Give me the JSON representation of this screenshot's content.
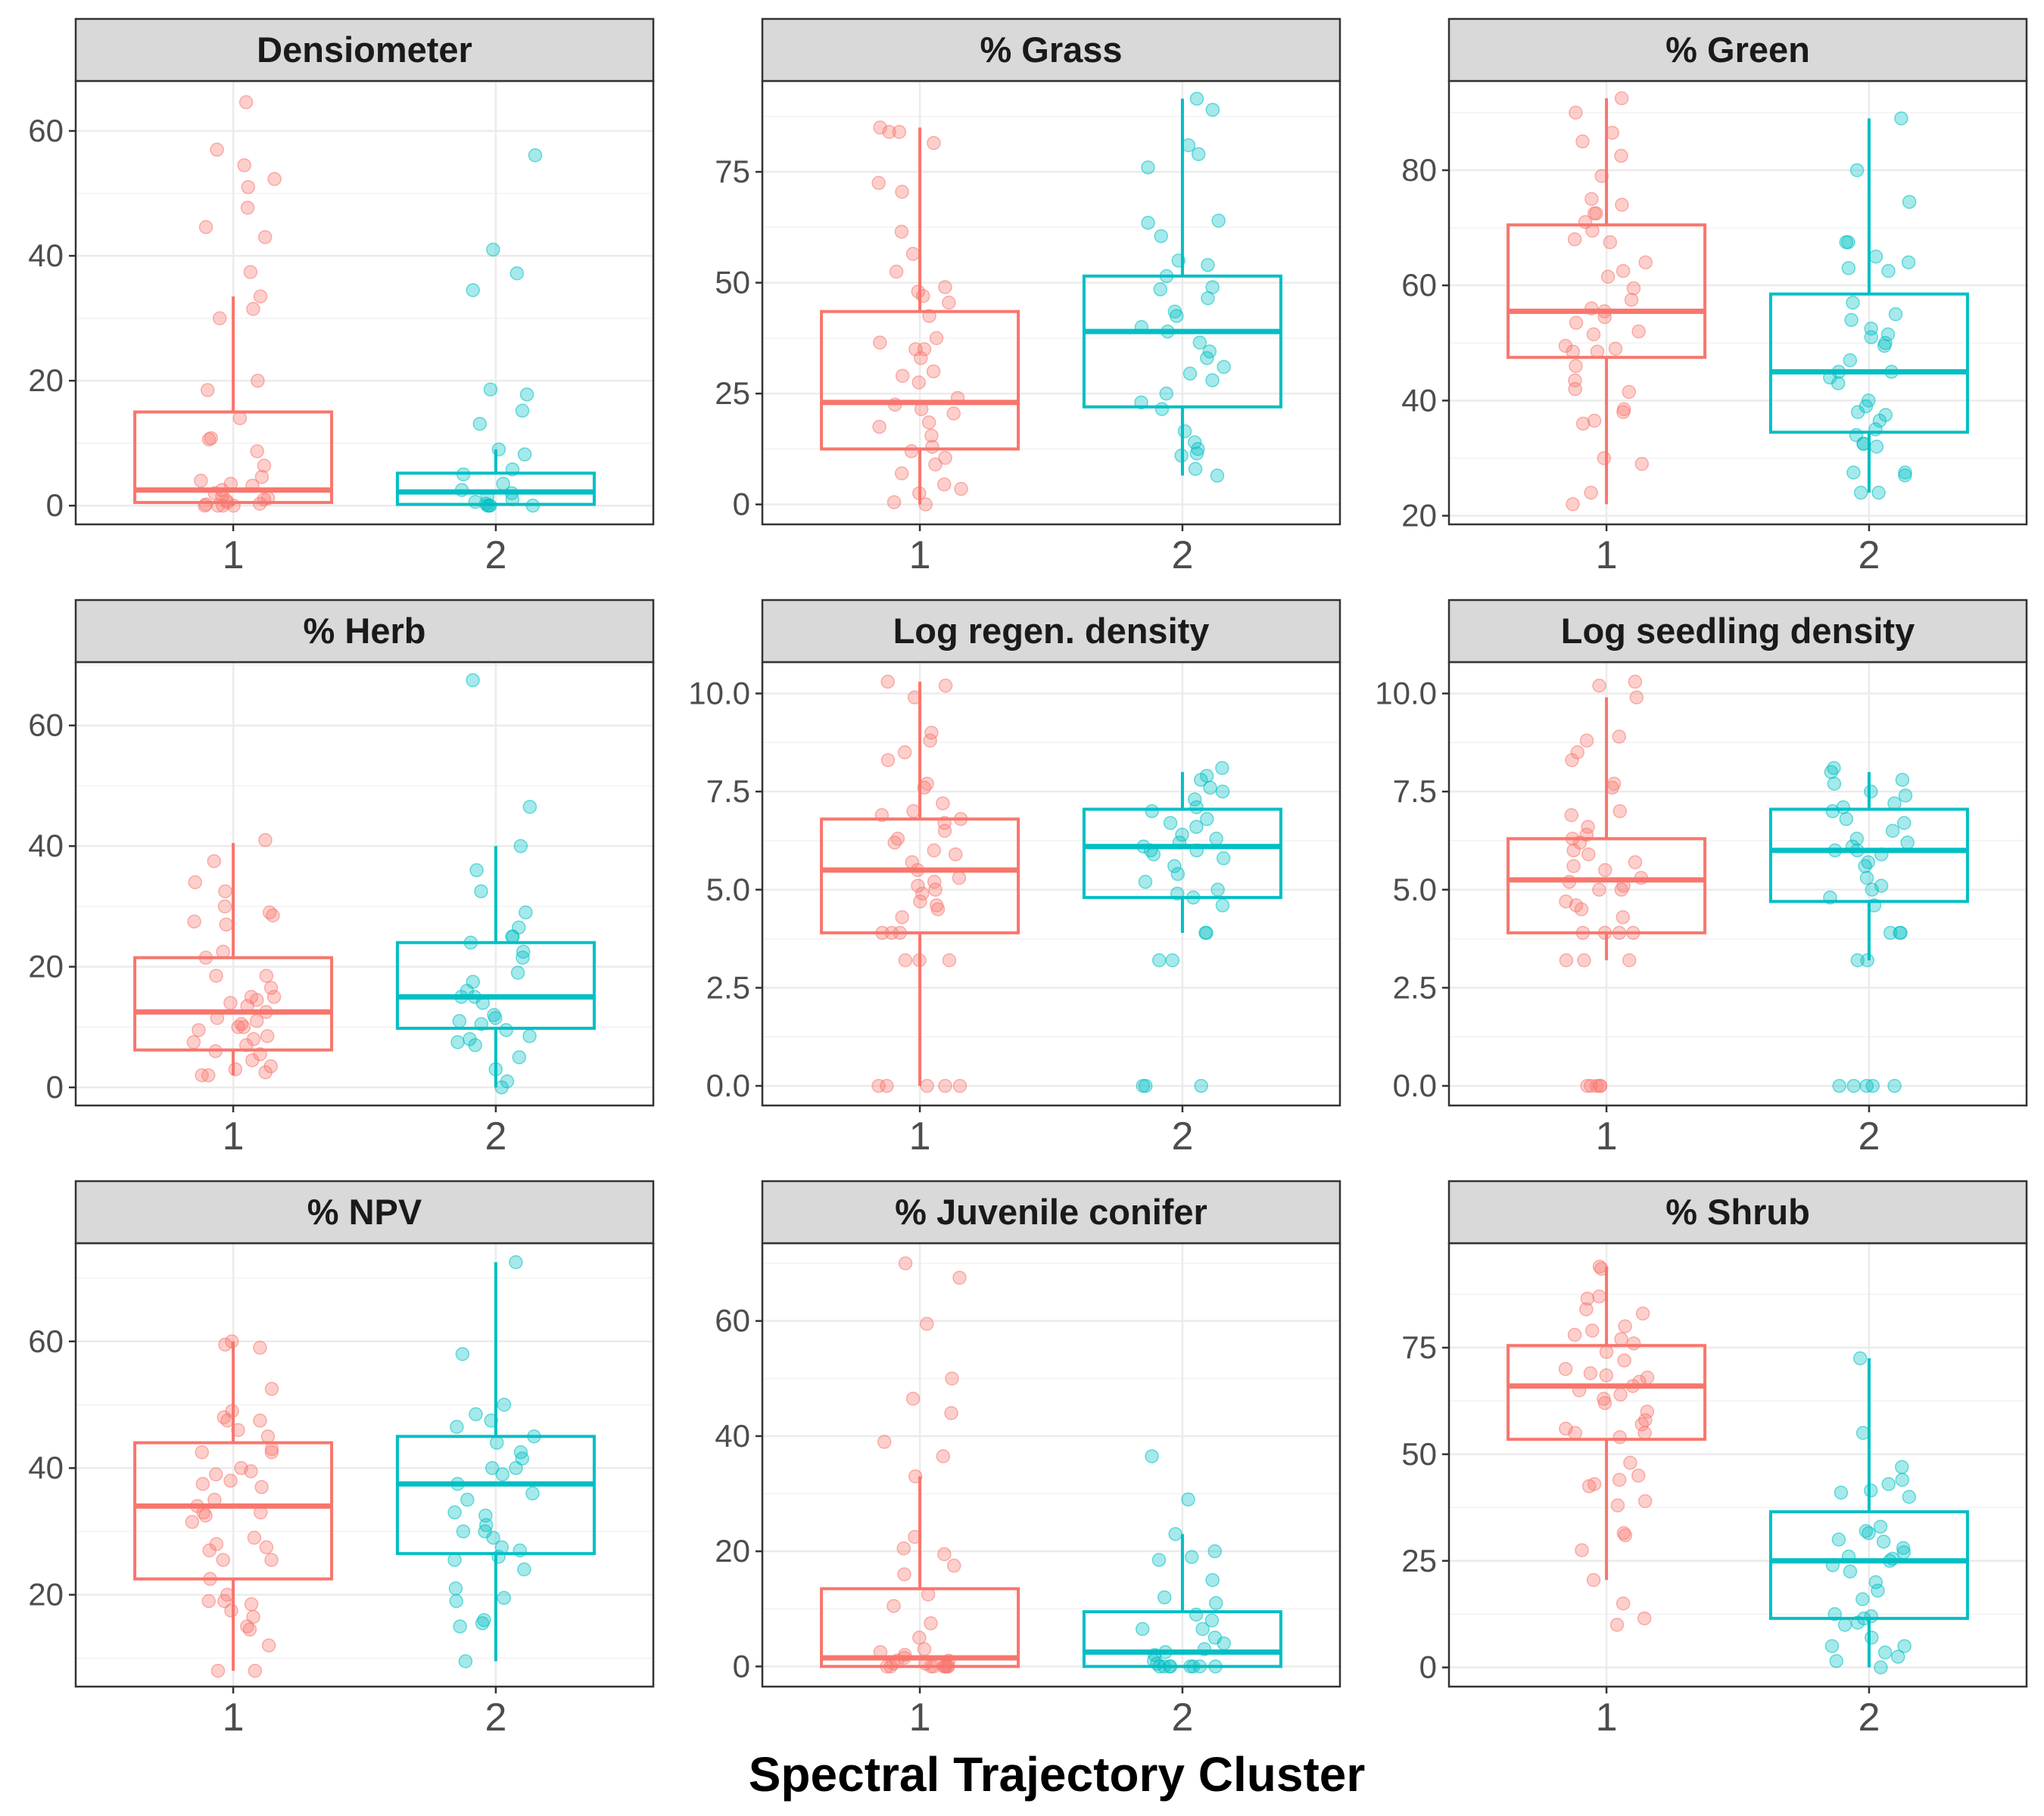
{
  "chart_data": {
    "type": "box",
    "xlabel": "Spectral Trajectory Cluster",
    "categories": [
      "1",
      "2"
    ],
    "colors": {
      "1": "#F8766D",
      "2": "#00BFC4"
    },
    "grid": true,
    "panels": [
      {
        "title": "Densiometer",
        "ylim": [
          -3,
          68
        ],
        "ticks": [
          0,
          20,
          40,
          60
        ],
        "boxes": [
          {
            "group": "1",
            "q1": 0.5,
            "median": 2.5,
            "q3": 15,
            "whisker_low": 0,
            "whisker_high": 33.5
          },
          {
            "group": "2",
            "q1": 0.2,
            "median": 2.2,
            "q3": 5.2,
            "whisker_low": 0,
            "whisker_high": 9
          }
        ],
        "points": {
          "1": [
            64.6,
            57,
            54.5,
            52.3,
            51,
            47.7,
            44.6,
            43,
            37.4,
            33.5,
            31.5,
            30,
            20,
            18.5,
            14,
            10.8,
            10.6,
            8.7,
            6.4,
            4.6,
            4,
            3.5,
            3.2,
            2.5,
            2,
            1.5,
            1.2,
            1,
            0.8,
            0.5,
            0.3,
            0.2,
            0,
            0,
            0,
            0
          ],
          "2": [
            56.1,
            41,
            37.2,
            34.5,
            18.6,
            17.8,
            15.2,
            13.1,
            9,
            8.2,
            5.8,
            5,
            3.5,
            2.5,
            2,
            1.5,
            1,
            0.6,
            0.3,
            0,
            0,
            0,
            0
          ]
        }
      },
      {
        "title": "% Grass",
        "ylim": [
          -4.5,
          95.5
        ],
        "ticks": [
          0,
          25,
          50,
          75
        ],
        "boxes": [
          {
            "group": "1",
            "q1": 12.5,
            "median": 23,
            "q3": 43.5,
            "whisker_low": 0,
            "whisker_high": 85
          },
          {
            "group": "2",
            "q1": 22,
            "median": 39,
            "q3": 51.5,
            "whisker_low": 6.5,
            "whisker_high": 91.5
          }
        ],
        "points": {
          "1": [
            85,
            84,
            84,
            81.5,
            72.5,
            70.5,
            61.5,
            56.5,
            52.5,
            49,
            48,
            47,
            45.5,
            42.5,
            37.5,
            36.5,
            35,
            35,
            33,
            30,
            29,
            27.5,
            24,
            22.5,
            21.5,
            20.5,
            18.5,
            17.5,
            15.5,
            13,
            12,
            10.5,
            9,
            7,
            4.5,
            3.5,
            2.5,
            0.5,
            0
          ],
          "2": [
            91.5,
            89,
            81,
            79,
            76,
            64,
            63.5,
            60.5,
            55,
            54,
            51.5,
            49,
            48.5,
            46.5,
            43.5,
            42.5,
            40,
            39,
            36.5,
            34.5,
            33,
            31,
            29.5,
            28,
            25,
            23,
            21.5,
            16.5,
            14,
            12.5,
            11.5,
            11,
            8,
            6.5
          ]
        }
      },
      {
        "title": "% Green",
        "ylim": [
          18.5,
          95.5
        ],
        "ticks": [
          20,
          40,
          60,
          80
        ],
        "boxes": [
          {
            "group": "1",
            "q1": 47.5,
            "median": 55.5,
            "q3": 70.5,
            "whisker_low": 22,
            "whisker_high": 92.5
          },
          {
            "group": "2",
            "q1": 34.5,
            "median": 45,
            "q3": 58.5,
            "whisker_low": 24,
            "whisker_high": 89
          }
        ],
        "points": {
          "1": [
            92.5,
            90,
            86.5,
            85,
            82.5,
            79,
            75,
            74,
            72.5,
            72.5,
            71,
            69.5,
            68,
            67.5,
            64,
            62.5,
            61.5,
            59.5,
            57.5,
            56,
            55.5,
            54.5,
            53.5,
            52,
            51.5,
            49.5,
            49,
            48.5,
            48.5,
            46,
            43.5,
            42,
            41.5,
            38.5,
            38,
            36.5,
            36,
            30,
            29,
            24,
            22
          ],
          "2": [
            89,
            80,
            74.5,
            67.5,
            67.5,
            65,
            64,
            63,
            62.5,
            57,
            55,
            54,
            52.5,
            51.5,
            51,
            50,
            49.5,
            47,
            45,
            45,
            44,
            43,
            40,
            39,
            38,
            37.5,
            36.5,
            35,
            34,
            32.5,
            32.5,
            32,
            27.5,
            27.5,
            27,
            24,
            24
          ]
        }
      },
      {
        "title": "% Herb",
        "ylim": [
          -3,
          70.5
        ],
        "ticks": [
          0,
          20,
          40,
          60
        ],
        "boxes": [
          {
            "group": "1",
            "q1": 6.2,
            "median": 12.5,
            "q3": 21.5,
            "whisker_low": 2,
            "whisker_high": 40.5
          },
          {
            "group": "2",
            "q1": 9.8,
            "median": 15,
            "q3": 24,
            "whisker_low": 0,
            "whisker_high": 40
          }
        ],
        "points": {
          "1": [
            41,
            37.5,
            34,
            32.5,
            30,
            29,
            28.5,
            27.5,
            27,
            22.5,
            21.5,
            18.5,
            18.5,
            16.5,
            15,
            15,
            14.5,
            14,
            13.5,
            12.5,
            11.5,
            11,
            10.5,
            10,
            10,
            9.5,
            8.5,
            8,
            7.5,
            7,
            6,
            5.5,
            4.5,
            3.5,
            3,
            2.5,
            2,
            2
          ],
          "2": [
            67.5,
            46.5,
            40,
            36,
            32.5,
            29,
            26.5,
            25,
            25,
            24,
            22.5,
            21.5,
            19,
            17.5,
            16,
            15,
            15,
            14,
            12,
            11.5,
            11,
            10.5,
            9.5,
            8.5,
            8,
            7.5,
            7,
            5,
            3,
            1,
            0
          ]
        }
      },
      {
        "title": "Log regen. density",
        "ylim": [
          -0.5,
          10.8
        ],
        "ticks": [
          0.0,
          2.5,
          5.0,
          7.5,
          10.0
        ],
        "boxes": [
          {
            "group": "1",
            "q1": 3.9,
            "median": 5.5,
            "q3": 6.8,
            "whisker_low": 0,
            "whisker_high": 10.3
          },
          {
            "group": "2",
            "q1": 4.8,
            "median": 6.1,
            "q3": 7.05,
            "whisker_low": 3.9,
            "whisker_high": 8
          }
        ],
        "points": {
          "1": [
            10.3,
            10.2,
            9.9,
            9,
            8.8,
            8.5,
            8.3,
            7.7,
            7.6,
            7.2,
            7,
            6.9,
            6.8,
            6.7,
            6.5,
            6.3,
            6.2,
            6,
            5.9,
            5.7,
            5.5,
            5.3,
            5.2,
            5.1,
            5,
            4.9,
            4.7,
            4.6,
            4.5,
            4.3,
            3.9,
            3.9,
            3.9,
            3.2,
            3.2,
            3.2,
            0,
            0,
            0,
            0,
            0
          ],
          "2": [
            8.1,
            7.9,
            7.8,
            7.6,
            7.5,
            7.3,
            7.1,
            7,
            6.8,
            6.7,
            6.6,
            6.4,
            6.3,
            6.2,
            6.1,
            6,
            6,
            5.9,
            5.8,
            5.6,
            5.4,
            5.2,
            5,
            4.9,
            4.8,
            4.6,
            3.9,
            3.9,
            3.2,
            3.2,
            0,
            0,
            0
          ]
        }
      },
      {
        "title": "Log seedling density",
        "ylim": [
          -0.5,
          10.8
        ],
        "ticks": [
          0.0,
          2.5,
          5.0,
          7.5,
          10.0
        ],
        "boxes": [
          {
            "group": "1",
            "q1": 3.9,
            "median": 5.25,
            "q3": 6.3,
            "whisker_low": 3.2,
            "whisker_high": 9.9
          },
          {
            "group": "2",
            "q1": 4.7,
            "median": 6,
            "q3": 7.05,
            "whisker_low": 3.2,
            "whisker_high": 8
          }
        ],
        "points": {
          "1": [
            10.3,
            10.2,
            9.9,
            8.9,
            8.8,
            8.5,
            8.3,
            7.7,
            7.6,
            7,
            6.9,
            6.6,
            6.4,
            6.3,
            6.2,
            6,
            5.9,
            5.7,
            5.6,
            5.5,
            5.3,
            5.2,
            5.1,
            5,
            5,
            4.7,
            4.6,
            4.5,
            4.3,
            3.9,
            3.9,
            3.9,
            3.9,
            3.2,
            3.2,
            3.2,
            0,
            0,
            0,
            0,
            0
          ],
          "2": [
            8.1,
            8,
            7.8,
            7.7,
            7.5,
            7.4,
            7.2,
            7.1,
            7,
            6.8,
            6.7,
            6.5,
            6.3,
            6.2,
            6.1,
            6,
            6,
            5.9,
            5.7,
            5.6,
            5.3,
            5.1,
            5,
            4.8,
            4.6,
            3.9,
            3.9,
            3.9,
            3.2,
            3.2,
            0,
            0,
            0,
            0,
            0
          ]
        }
      },
      {
        "title": "% NPV",
        "ylim": [
          5.5,
          75.5
        ],
        "ticks": [
          20,
          40,
          60
        ],
        "boxes": [
          {
            "group": "1",
            "q1": 22.5,
            "median": 34,
            "q3": 44,
            "whisker_low": 8,
            "whisker_high": 60
          },
          {
            "group": "2",
            "q1": 26.5,
            "median": 37.5,
            "q3": 45,
            "whisker_low": 9.5,
            "whisker_high": 72.5
          }
        ],
        "points": {
          "1": [
            60,
            59.5,
            59,
            52.5,
            49,
            48,
            47.5,
            47.5,
            46,
            45,
            43,
            42.5,
            42.5,
            40,
            39.5,
            39,
            38,
            37.5,
            37,
            35,
            34,
            33,
            33,
            32.5,
            31.5,
            29,
            28,
            27.5,
            27,
            25.5,
            25.5,
            22.5,
            20,
            19,
            19,
            18.5,
            17.5,
            16.5,
            15,
            14.5,
            12,
            8,
            8
          ],
          "2": [
            72.5,
            58,
            50,
            48.5,
            47.5,
            46.5,
            45,
            44,
            42.5,
            41.5,
            40,
            40,
            39,
            37.5,
            36,
            35,
            33,
            32.5,
            31,
            30,
            30,
            29,
            27.5,
            27,
            26,
            25.5,
            24,
            21,
            19.5,
            19,
            16,
            15.5,
            15,
            9.5
          ]
        }
      },
      {
        "title": "% Juvenile conifer",
        "ylim": [
          -3.5,
          73.5
        ],
        "ticks": [
          0,
          20,
          40,
          60
        ],
        "boxes": [
          {
            "group": "1",
            "q1": 0,
            "median": 1.5,
            "q3": 13.5,
            "whisker_low": 0,
            "whisker_high": 33
          },
          {
            "group": "2",
            "q1": 0,
            "median": 2.5,
            "q3": 9.5,
            "whisker_low": 0,
            "whisker_high": 23
          }
        ],
        "points": {
          "1": [
            70,
            67.5,
            59.5,
            50,
            46.5,
            44,
            39,
            36.5,
            33,
            22.5,
            20.5,
            19.5,
            17.5,
            16,
            12.5,
            10.5,
            7.5,
            5,
            3,
            2.5,
            2,
            1.5,
            1,
            1,
            0.5,
            0.5,
            0,
            0,
            0,
            0,
            0,
            0,
            0,
            0,
            0
          ],
          "2": [
            36.5,
            29,
            23,
            20,
            19,
            18.5,
            15,
            12,
            11,
            9,
            8,
            6.5,
            6.5,
            5,
            4,
            3,
            2.5,
            2,
            1,
            0.5,
            0,
            0,
            0,
            0,
            0,
            0,
            0,
            0
          ]
        }
      },
      {
        "title": "% Shrub",
        "ylim": [
          -4.5,
          99.5
        ],
        "ticks": [
          0,
          25,
          50,
          75
        ],
        "boxes": [
          {
            "group": "1",
            "q1": 53.5,
            "median": 66,
            "q3": 75.5,
            "whisker_low": 20.5,
            "whisker_high": 94
          },
          {
            "group": "2",
            "q1": 11.5,
            "median": 25,
            "q3": 36.5,
            "whisker_low": 0,
            "whisker_high": 72.5
          }
        ],
        "points": {
          "1": [
            94,
            93.5,
            87,
            86.5,
            84,
            83,
            80,
            79,
            78,
            77,
            76,
            74,
            72,
            70,
            69,
            68.5,
            68,
            67,
            66,
            65,
            64,
            63,
            62,
            60,
            58,
            57,
            56,
            55,
            55,
            54,
            48,
            45,
            44,
            43,
            42.5,
            39,
            38,
            31.5,
            31,
            27.5,
            20.5,
            15,
            11.5,
            10
          ],
          "2": [
            72.5,
            55,
            47,
            44,
            43,
            41.5,
            41,
            40,
            33,
            32,
            31.5,
            30,
            29.5,
            28,
            27,
            26,
            25.5,
            25,
            24,
            22.5,
            20,
            18,
            16,
            12.5,
            12,
            11.5,
            10.5,
            10,
            7,
            5,
            5,
            3.5,
            2.5,
            1.5,
            0
          ]
        }
      }
    ]
  }
}
